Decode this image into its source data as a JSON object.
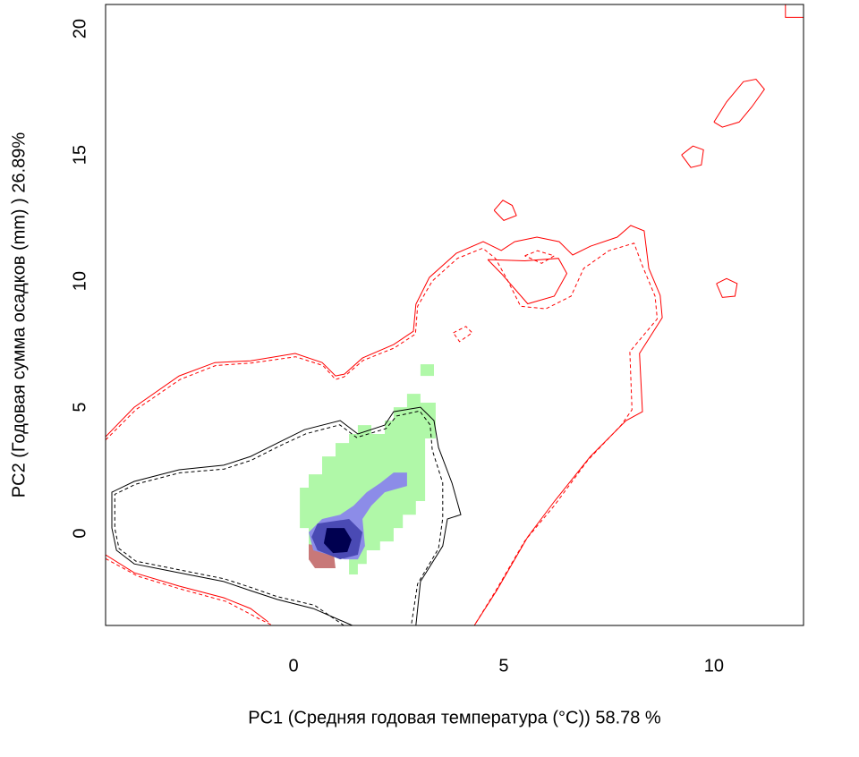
{
  "chart_data": {
    "type": "contour",
    "x_label": "PC1 (Средняя годовая температура (°C)) 58.78 %",
    "y_label": "PC2 (Годовая сумма осадков  (mm) ) 26.89%",
    "xlim": [
      -4.47,
      12.13
    ],
    "ylim": [
      -3.65,
      20.96
    ],
    "xticks": [
      0,
      5,
      10
    ],
    "yticks": [
      0,
      5,
      10,
      15,
      20
    ],
    "regions": [
      {
        "color": "#b0f8a8",
        "x": [
          2.38,
          2.7,
          2.7,
          3.02,
          3.02,
          3.38,
          3.38,
          3.13,
          3.13,
          2.91,
          2.91,
          2.6,
          2.6,
          2.38,
          2.38,
          2.06,
          2.06,
          1.74,
          1.74,
          1.53,
          1.53,
          1.32,
          1.32,
          0.36,
          0.36,
          0.15,
          0.15,
          0.36,
          0.36,
          0.68,
          0.68,
          1.0,
          1.0,
          1.32,
          1.32,
          1.53,
          1.53,
          1.85,
          1.85,
          2.17,
          2.17,
          2.38
        ],
        "y": [
          5.0,
          5.0,
          5.53,
          5.53,
          5.18,
          5.18,
          3.76,
          3.76,
          1.28,
          1.28,
          0.74,
          0.74,
          0.21,
          0.21,
          -0.32,
          -0.32,
          -0.67,
          -0.67,
          -1.21,
          -1.21,
          -1.63,
          -1.63,
          -0.85,
          -0.85,
          0.21,
          0.21,
          1.81,
          1.81,
          2.34,
          2.34,
          3.05,
          3.05,
          3.58,
          3.58,
          3.94,
          3.94,
          4.29,
          4.29,
          3.94,
          3.94,
          4.47,
          4.47
        ]
      },
      {
        "color": "#b0f8a8",
        "x": [
          3.02,
          3.34,
          3.34,
          3.02
        ],
        "y": [
          6.24,
          6.24,
          6.7,
          6.7
        ]
      },
      {
        "color": "#c87878",
        "x": [
          0.36,
          0.94,
          1.0,
          0.51,
          0.36
        ],
        "y": [
          -0.43,
          -0.57,
          -1.38,
          -1.38,
          -1.03
        ]
      },
      {
        "color": "#8c8ce8",
        "x": [
          2.38,
          2.7,
          2.7,
          2.17,
          1.85,
          1.64,
          1.7,
          1.53,
          1.21,
          0.47,
          0.36,
          0.68,
          1.11,
          1.43,
          1.74,
          2.06
        ],
        "y": [
          2.41,
          2.41,
          1.88,
          1.63,
          1.1,
          0.57,
          -0.5,
          -1.03,
          -1.03,
          -0.67,
          0.04,
          0.57,
          0.74,
          1.1,
          1.63,
          1.99
        ]
      },
      {
        "color": "#4a4ab4",
        "x": [
          0.57,
          1.32,
          1.64,
          1.53,
          1.11,
          0.57,
          0.43
        ],
        "y": [
          0.39,
          0.57,
          0.04,
          -0.85,
          -1.03,
          -0.67,
          -0.14
        ]
      },
      {
        "color": "#000050",
        "x": [
          0.79,
          1.21,
          1.38,
          1.28,
          0.94,
          0.72
        ],
        "y": [
          0.21,
          0.21,
          -0.25,
          -0.74,
          -0.78,
          -0.39
        ]
      }
    ],
    "contours": [
      {
        "color": "#ff0000",
        "linestyle": "solid",
        "x": [
          -4.47,
          -3.79,
          -2.72,
          -1.87,
          -1.02,
          0.04,
          0.68,
          1.0,
          1.21,
          1.64,
          2.38,
          2.85,
          2.91,
          3.23,
          3.87,
          4.51,
          4.94,
          5.26,
          5.79,
          6.32,
          6.64,
          7.06,
          7.7,
          8.02,
          8.34,
          8.45,
          8.72,
          8.77,
          8.23,
          8.3,
          7.91,
          7.06,
          6.21,
          5.57,
          4.83,
          4.3
        ],
        "y": [
          3.83,
          5.0,
          6.24,
          6.77,
          6.84,
          7.13,
          6.77,
          6.24,
          6.31,
          6.95,
          7.48,
          8.01,
          9.08,
          10.14,
          11.1,
          11.56,
          11.21,
          11.56,
          11.74,
          11.56,
          11.03,
          11.38,
          11.74,
          12.2,
          11.99,
          10.5,
          9.43,
          8.55,
          7.13,
          4.82,
          4.47,
          3.05,
          1.28,
          -0.14,
          -2.27,
          -3.65
        ]
      },
      {
        "color": "#ff0000",
        "linestyle": "solid",
        "x": [
          4.62,
          4.94,
          5.57,
          6.2,
          6.5,
          6.3,
          5.5,
          4.62
        ],
        "y": [
          10.85,
          10.3,
          9.1,
          9.4,
          10.3,
          10.9,
          10.8,
          10.85
        ]
      },
      {
        "color": "#ff0000",
        "linestyle": "solid",
        "x": [
          4.77,
          4.98,
          5.2,
          5.3,
          5.0,
          4.77
        ],
        "y": [
          12.8,
          13.2,
          13.0,
          12.6,
          12.4,
          12.8
        ]
      },
      {
        "color": "#ff0000",
        "linestyle": "solid",
        "x": [
          9.23,
          9.5,
          9.75,
          9.7,
          9.45,
          9.23
        ],
        "y": [
          15.0,
          15.35,
          15.2,
          14.6,
          14.5,
          15.0
        ]
      },
      {
        "color": "#ff0000",
        "linestyle": "solid",
        "x": [
          10.0,
          10.3,
          10.7,
          11.0,
          11.2,
          10.9,
          10.6,
          10.2,
          10.0
        ],
        "y": [
          16.3,
          17.1,
          17.9,
          18.0,
          17.6,
          16.9,
          16.3,
          16.1,
          16.3
        ]
      },
      {
        "color": "#ff0000",
        "linestyle": "solid",
        "x": [
          10.06,
          10.3,
          10.55,
          10.5,
          10.2,
          10.06
        ],
        "y": [
          9.9,
          10.1,
          9.9,
          9.4,
          9.35,
          9.9
        ]
      },
      {
        "color": "#ff0000",
        "linestyle": "solid",
        "x": [
          11.7,
          11.7,
          12.13
        ],
        "y": [
          20.96,
          20.45,
          20.45
        ]
      },
      {
        "color": "#ff0000",
        "linestyle": "solid",
        "x": [
          -4.47,
          -3.79,
          -2.72,
          -1.66,
          -1.02,
          -0.6
        ],
        "y": [
          -0.85,
          -1.56,
          -2.09,
          -2.55,
          -2.98,
          -3.51
        ]
      },
      {
        "color": "#ff0000",
        "linestyle": "dashed",
        "x": [
          -4.47,
          -3.75,
          -2.7,
          -1.85,
          -1.0,
          0.05,
          0.7,
          1.0,
          1.2,
          1.65,
          2.4,
          2.9,
          2.95,
          3.3,
          3.9,
          4.5,
          4.8,
          5.1,
          5.4,
          6.0,
          6.6,
          6.9,
          7.5,
          8.1,
          8.3,
          8.6,
          8.65,
          8.0,
          8.05,
          7.8,
          7.0,
          6.2,
          5.5,
          4.8,
          4.3
        ],
        "y": [
          3.7,
          4.9,
          6.1,
          6.65,
          6.75,
          7.0,
          6.65,
          6.1,
          6.2,
          6.85,
          7.35,
          7.9,
          9.0,
          10.0,
          10.9,
          11.3,
          10.9,
          10.0,
          9.0,
          8.9,
          9.4,
          10.5,
          11.2,
          11.5,
          10.6,
          9.4,
          8.5,
          7.2,
          4.9,
          4.3,
          2.9,
          1.1,
          -0.3,
          -2.3,
          -3.65
        ]
      },
      {
        "color": "#ff0000",
        "linestyle": "dashed",
        "x": [
          5.5,
          5.8,
          6.2,
          5.9,
          5.5
        ],
        "y": [
          11.0,
          11.2,
          11.0,
          10.7,
          11.0
        ]
      },
      {
        "color": "#ff0000",
        "linestyle": "dashed",
        "x": [
          3.8,
          4.1,
          4.25,
          3.95,
          3.8
        ],
        "y": [
          7.95,
          8.2,
          7.95,
          7.6,
          7.95
        ]
      },
      {
        "color": "#ff0000",
        "linestyle": "dashed",
        "x": [
          -4.47,
          -3.7,
          -2.7,
          -1.6,
          -0.8,
          -0.5
        ],
        "y": [
          -1.0,
          -1.7,
          -2.2,
          -2.7,
          -3.4,
          -3.65
        ]
      },
      {
        "color": "#000000",
        "linestyle": "solid",
        "x": [
          1.4,
          0.47,
          -0.38,
          -1.02,
          -1.66,
          -2.72,
          -3.79,
          -4.21,
          -4.32,
          -4.32,
          -3.79,
          -2.72,
          -1.66,
          -1.02,
          -0.38,
          0.26,
          1.11,
          1.53,
          2.17,
          2.38,
          3.02,
          3.34,
          3.45,
          3.77,
          3.98,
          3.66,
          3.55,
          3.02,
          2.91
        ],
        "y": [
          -3.65,
          -2.98,
          -2.62,
          -2.27,
          -1.91,
          -1.56,
          -1.21,
          -0.67,
          0.21,
          1.63,
          2.06,
          2.52,
          2.7,
          3.05,
          3.58,
          4.11,
          4.47,
          3.94,
          4.29,
          4.82,
          5.0,
          4.47,
          3.4,
          1.99,
          0.74,
          0.57,
          -0.5,
          -1.91,
          -3.65
        ]
      },
      {
        "color": "#000000",
        "linestyle": "dashed",
        "x": [
          1.2,
          0.5,
          -0.4,
          -1.0,
          -1.65,
          -2.7,
          -3.75,
          -4.15,
          -4.25,
          -4.25,
          -3.75,
          -2.7,
          -1.65,
          -1.0,
          -0.35,
          0.3,
          1.1,
          1.5,
          2.2,
          2.45,
          3.0,
          3.25,
          3.3,
          3.55,
          3.55,
          3.45,
          2.95,
          2.8
        ],
        "y": [
          -3.65,
          -2.85,
          -2.5,
          -2.15,
          -1.8,
          -1.45,
          -1.1,
          -0.6,
          0.2,
          1.55,
          1.95,
          2.4,
          2.55,
          2.9,
          3.45,
          3.95,
          4.3,
          3.8,
          4.15,
          4.65,
          4.85,
          4.3,
          3.3,
          2.0,
          0.6,
          -0.6,
          -2.0,
          -3.65
        ]
      }
    ]
  }
}
